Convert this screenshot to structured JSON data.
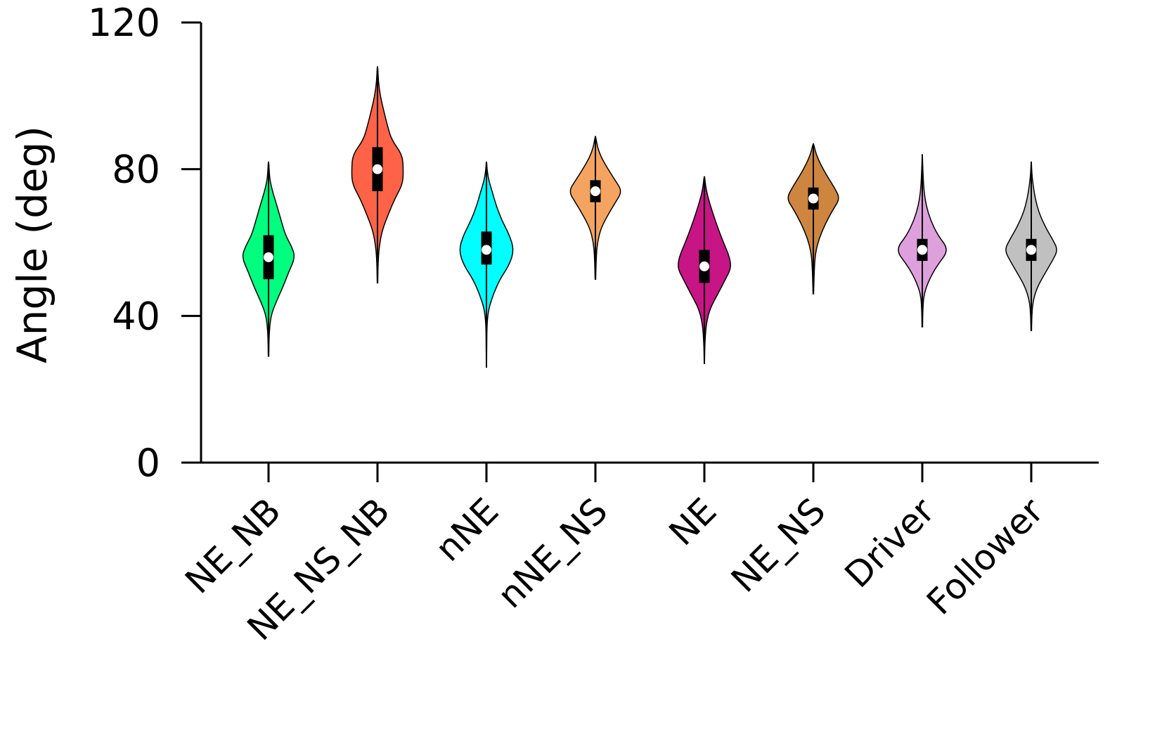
{
  "chart_data": {
    "type": "violin",
    "ylabel": "Angle (deg)",
    "xlabel": "",
    "ylim": [
      0,
      120
    ],
    "yticks": [
      {
        "value": 0,
        "label": "0"
      },
      {
        "value": 40,
        "label": "40"
      },
      {
        "value": 80,
        "label": "80"
      },
      {
        "value": 120,
        "label": "120"
      }
    ],
    "grid": false,
    "legend": "none",
    "categories": [
      "NE_NB",
      "NE_NS_NB",
      "nNE",
      "nNE_NS",
      "NE",
      "NE_NS",
      "Driver",
      "Follower"
    ],
    "series": [
      {
        "category": "NE_NB",
        "color": "#00ff7f",
        "median": 56,
        "q1": 50,
        "q3": 62,
        "min": 29,
        "max": 82,
        "profile": [
          [
            29,
            0.01
          ],
          [
            35,
            0.02
          ],
          [
            40,
            0.08
          ],
          [
            44,
            0.28
          ],
          [
            48,
            0.52
          ],
          [
            52,
            0.72
          ],
          [
            56,
            0.95
          ],
          [
            59,
            0.82
          ],
          [
            62,
            0.6
          ],
          [
            66,
            0.45
          ],
          [
            70,
            0.3
          ],
          [
            74,
            0.14
          ],
          [
            77,
            0.05
          ],
          [
            80,
            0.02
          ],
          [
            82,
            0.01
          ]
        ]
      },
      {
        "category": "NE_NS_NB",
        "color": "#ff6347",
        "median": 80,
        "q1": 74,
        "q3": 86,
        "min": 49,
        "max": 108,
        "profile": [
          [
            49,
            0.01
          ],
          [
            54,
            0.02
          ],
          [
            58,
            0.05
          ],
          [
            63,
            0.15
          ],
          [
            68,
            0.4
          ],
          [
            72,
            0.62
          ],
          [
            76,
            0.9
          ],
          [
            80,
            0.92
          ],
          [
            84,
            0.88
          ],
          [
            88,
            0.5
          ],
          [
            92,
            0.35
          ],
          [
            96,
            0.22
          ],
          [
            100,
            0.1
          ],
          [
            104,
            0.03
          ],
          [
            108,
            0.01
          ]
        ]
      },
      {
        "category": "nNE",
        "color": "#00ffff",
        "median": 58,
        "q1": 54,
        "q3": 63,
        "min": 26,
        "max": 82,
        "profile": [
          [
            26,
            0.005
          ],
          [
            32,
            0.01
          ],
          [
            38,
            0.02
          ],
          [
            42,
            0.08
          ],
          [
            46,
            0.25
          ],
          [
            50,
            0.48
          ],
          [
            54,
            0.82
          ],
          [
            58,
            0.98
          ],
          [
            62,
            0.82
          ],
          [
            66,
            0.55
          ],
          [
            70,
            0.35
          ],
          [
            74,
            0.2
          ],
          [
            77,
            0.08
          ],
          [
            80,
            0.02
          ],
          [
            82,
            0.01
          ]
        ]
      },
      {
        "category": "nNE_NS",
        "color": "#f4a460",
        "median": 74,
        "q1": 71,
        "q3": 77,
        "min": 50,
        "max": 89,
        "profile": [
          [
            50,
            0.01
          ],
          [
            56,
            0.03
          ],
          [
            60,
            0.07
          ],
          [
            64,
            0.2
          ],
          [
            68,
            0.48
          ],
          [
            71,
            0.72
          ],
          [
            74,
            0.95
          ],
          [
            77,
            0.7
          ],
          [
            80,
            0.45
          ],
          [
            83,
            0.22
          ],
          [
            86,
            0.07
          ],
          [
            89,
            0.01
          ]
        ]
      },
      {
        "category": "NE",
        "color": "#c71585",
        "median": 53.5,
        "q1": 49,
        "q3": 58,
        "min": 27,
        "max": 78,
        "profile": [
          [
            27,
            0.005
          ],
          [
            33,
            0.02
          ],
          [
            38,
            0.07
          ],
          [
            42,
            0.2
          ],
          [
            46,
            0.48
          ],
          [
            50,
            0.75
          ],
          [
            53,
            0.95
          ],
          [
            56,
            0.9
          ],
          [
            60,
            0.68
          ],
          [
            64,
            0.48
          ],
          [
            68,
            0.3
          ],
          [
            72,
            0.14
          ],
          [
            75,
            0.05
          ],
          [
            78,
            0.01
          ]
        ]
      },
      {
        "category": "NE_NS",
        "color": "#cd853f",
        "median": 72,
        "q1": 69,
        "q3": 75,
        "min": 46,
        "max": 87,
        "profile": [
          [
            46,
            0.01
          ],
          [
            52,
            0.03
          ],
          [
            57,
            0.07
          ],
          [
            61,
            0.2
          ],
          [
            65,
            0.42
          ],
          [
            69,
            0.7
          ],
          [
            72,
            0.95
          ],
          [
            75,
            0.75
          ],
          [
            78,
            0.5
          ],
          [
            81,
            0.28
          ],
          [
            84,
            0.1
          ],
          [
            87,
            0.01
          ]
        ]
      },
      {
        "category": "Driver",
        "color": "#dda0dd",
        "median": 58,
        "q1": 55,
        "q3": 61,
        "min": 37,
        "max": 84,
        "profile": [
          [
            37,
            0.01
          ],
          [
            42,
            0.02
          ],
          [
            46,
            0.06
          ],
          [
            50,
            0.25
          ],
          [
            54,
            0.55
          ],
          [
            58,
            0.95
          ],
          [
            62,
            0.55
          ],
          [
            66,
            0.3
          ],
          [
            70,
            0.14
          ],
          [
            74,
            0.06
          ],
          [
            78,
            0.03
          ],
          [
            82,
            0.01
          ],
          [
            84,
            0.005
          ]
        ]
      },
      {
        "category": "Follower",
        "color": "#c0c0c0",
        "median": 58,
        "q1": 55,
        "q3": 61,
        "min": 36,
        "max": 82,
        "profile": [
          [
            36,
            0.01
          ],
          [
            40,
            0.02
          ],
          [
            44,
            0.06
          ],
          [
            48,
            0.22
          ],
          [
            52,
            0.52
          ],
          [
            55,
            0.75
          ],
          [
            58,
            0.95
          ],
          [
            61,
            0.75
          ],
          [
            64,
            0.52
          ],
          [
            68,
            0.28
          ],
          [
            72,
            0.14
          ],
          [
            76,
            0.06
          ],
          [
            79,
            0.02
          ],
          [
            82,
            0.005
          ]
        ]
      }
    ]
  }
}
